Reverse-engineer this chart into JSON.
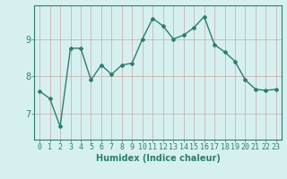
{
  "x": [
    0,
    1,
    2,
    3,
    4,
    5,
    6,
    7,
    8,
    9,
    10,
    11,
    12,
    13,
    14,
    15,
    16,
    17,
    18,
    19,
    20,
    21,
    22,
    23
  ],
  "y": [
    7.6,
    7.4,
    6.65,
    8.75,
    8.75,
    7.9,
    8.3,
    8.05,
    8.3,
    8.35,
    9.0,
    9.55,
    9.35,
    9.0,
    9.1,
    9.3,
    9.6,
    8.85,
    8.65,
    8.4,
    7.9,
    7.65,
    7.62,
    7.65
  ],
  "line_color": "#2e7d6e",
  "marker": "D",
  "marker_size": 2.0,
  "bg_color": "#d6f0f0",
  "grid_color": "#c8a8a8",
  "xlabel": "Humidex (Indice chaleur)",
  "xlim": [
    -0.5,
    23.5
  ],
  "ylim": [
    6.3,
    9.9
  ],
  "yticks": [
    7,
    8,
    9
  ],
  "xticks": [
    0,
    1,
    2,
    3,
    4,
    5,
    6,
    7,
    8,
    9,
    10,
    11,
    12,
    13,
    14,
    15,
    16,
    17,
    18,
    19,
    20,
    21,
    22,
    23
  ],
  "xlabel_fontsize": 7,
  "tick_fontsize": 6,
  "ytick_fontsize": 7,
  "line_width": 1.0
}
